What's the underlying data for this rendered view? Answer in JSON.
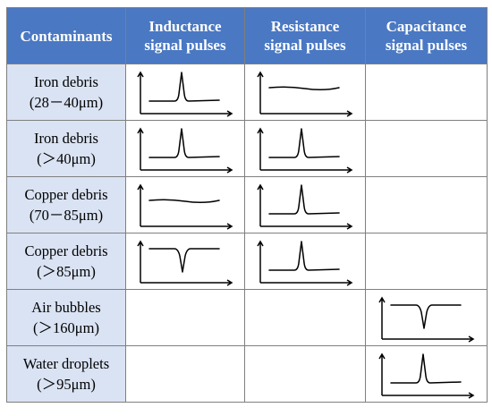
{
  "table": {
    "headers": [
      {
        "line1": "Contaminants",
        "line2": ""
      },
      {
        "line1": "Inductance",
        "line2": "signal pulses"
      },
      {
        "line1": "Resistance",
        "line2": "signal pulses"
      },
      {
        "line1": "Capacitance",
        "line2": "signal pulses"
      }
    ],
    "rows": [
      {
        "name": "Iron debris",
        "size": "(28－40μm)",
        "inductance": "peak-up",
        "resistance": "flat",
        "capacitance": "none"
      },
      {
        "name": "Iron debris",
        "size": "(＞40μm)",
        "inductance": "peak-up",
        "resistance": "peak-up",
        "capacitance": "none"
      },
      {
        "name": "Copper debris",
        "size": "(70－85μm)",
        "inductance": "flat",
        "resistance": "peak-up",
        "capacitance": "none"
      },
      {
        "name": "Copper debris",
        "size": "(＞85μm)",
        "inductance": "peak-down",
        "resistance": "peak-up",
        "capacitance": "none"
      },
      {
        "name": "Air bubbles",
        "size": "(＞160μm)",
        "inductance": "none",
        "resistance": "none",
        "capacitance": "peak-down"
      },
      {
        "name": "Water droplets",
        "size": "(＞95μm)",
        "inductance": "none",
        "resistance": "none",
        "capacitance": "peak-up"
      }
    ]
  },
  "colors": {
    "header_bg": "#4a78c3",
    "label_bg": "#dae3f3",
    "border": "#7f7f7f",
    "line": "#000000"
  }
}
